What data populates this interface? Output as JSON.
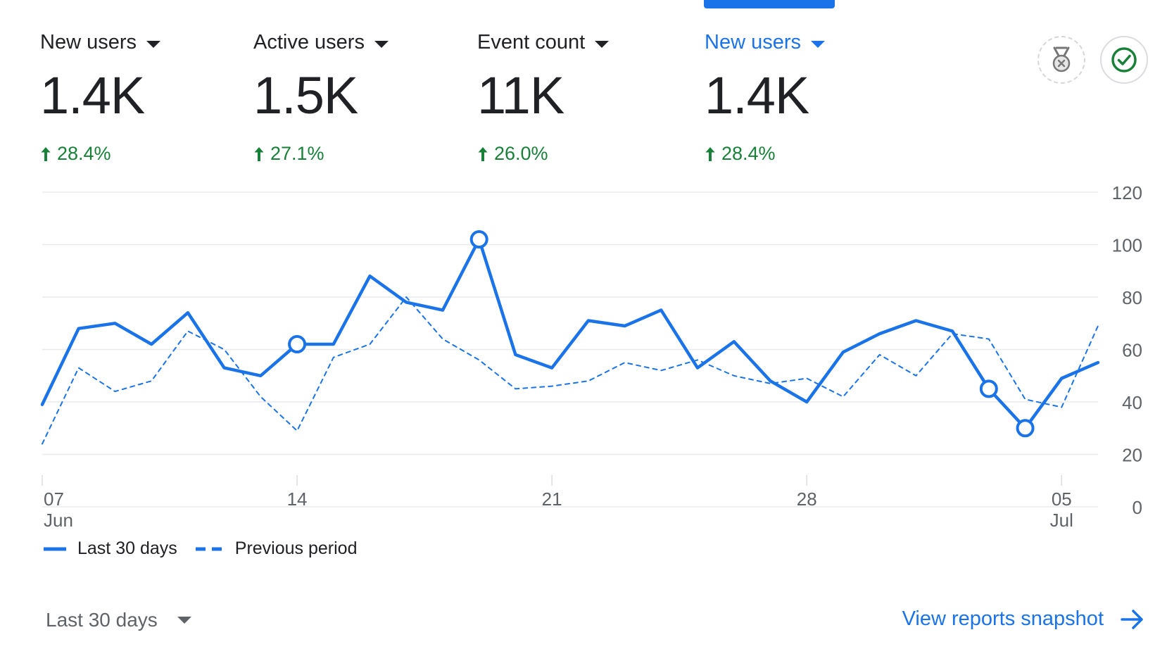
{
  "metrics": [
    {
      "label": "New users",
      "value": "1.4K",
      "change": "28.4%"
    },
    {
      "label": "Active users",
      "value": "1.5K",
      "change": "27.1%"
    },
    {
      "label": "Event count",
      "value": "11K",
      "change": "26.0%"
    },
    {
      "label": "New users",
      "value": "1.4K",
      "change": "28.4%",
      "selected": true
    }
  ],
  "colors": {
    "accent": "#1a73e8",
    "positive": "#188038",
    "gridline": "#e8eaed",
    "text": "#202124",
    "muted": "#5f6368"
  },
  "icons": {
    "badge": "achievement-badge-icon",
    "check": "check-circle-icon"
  },
  "chart_data": {
    "type": "line",
    "y_ticks": [
      "120",
      "100",
      "80",
      "60",
      "40",
      "20",
      "0"
    ],
    "ylim": [
      0,
      120
    ],
    "x_ticks": [
      {
        "label": "07",
        "sub": "Jun",
        "day": 0
      },
      {
        "label": "14",
        "sub": "",
        "day": 7
      },
      {
        "label": "21",
        "sub": "",
        "day": 14
      },
      {
        "label": "28",
        "sub": "",
        "day": 21
      },
      {
        "label": "05",
        "sub": "Jul",
        "day": 28
      }
    ],
    "series": [
      {
        "name": "Last 30 days",
        "style": "solid",
        "values": [
          39,
          68,
          70,
          62,
          74,
          53,
          50,
          62,
          62,
          88,
          78,
          75,
          102,
          58,
          53,
          71,
          69,
          75,
          53,
          63,
          48,
          40,
          59,
          66,
          71,
          67,
          45,
          30,
          49,
          55
        ],
        "markers": [
          7,
          12,
          26,
          27
        ]
      },
      {
        "name": "Previous period",
        "style": "dashed",
        "values": [
          24,
          53,
          44,
          48,
          67,
          60,
          42,
          29,
          57,
          62,
          80,
          64,
          56,
          45,
          46,
          48,
          55,
          52,
          56,
          50,
          47,
          49,
          42,
          58,
          50,
          66,
          64,
          41,
          38,
          69
        ]
      }
    ],
    "legend": [
      "Last 30 days",
      "Previous period"
    ],
    "legend_position": "bottom-left",
    "grid": true
  },
  "footer": {
    "range_label": "Last 30 days",
    "link_label": "View reports snapshot"
  }
}
